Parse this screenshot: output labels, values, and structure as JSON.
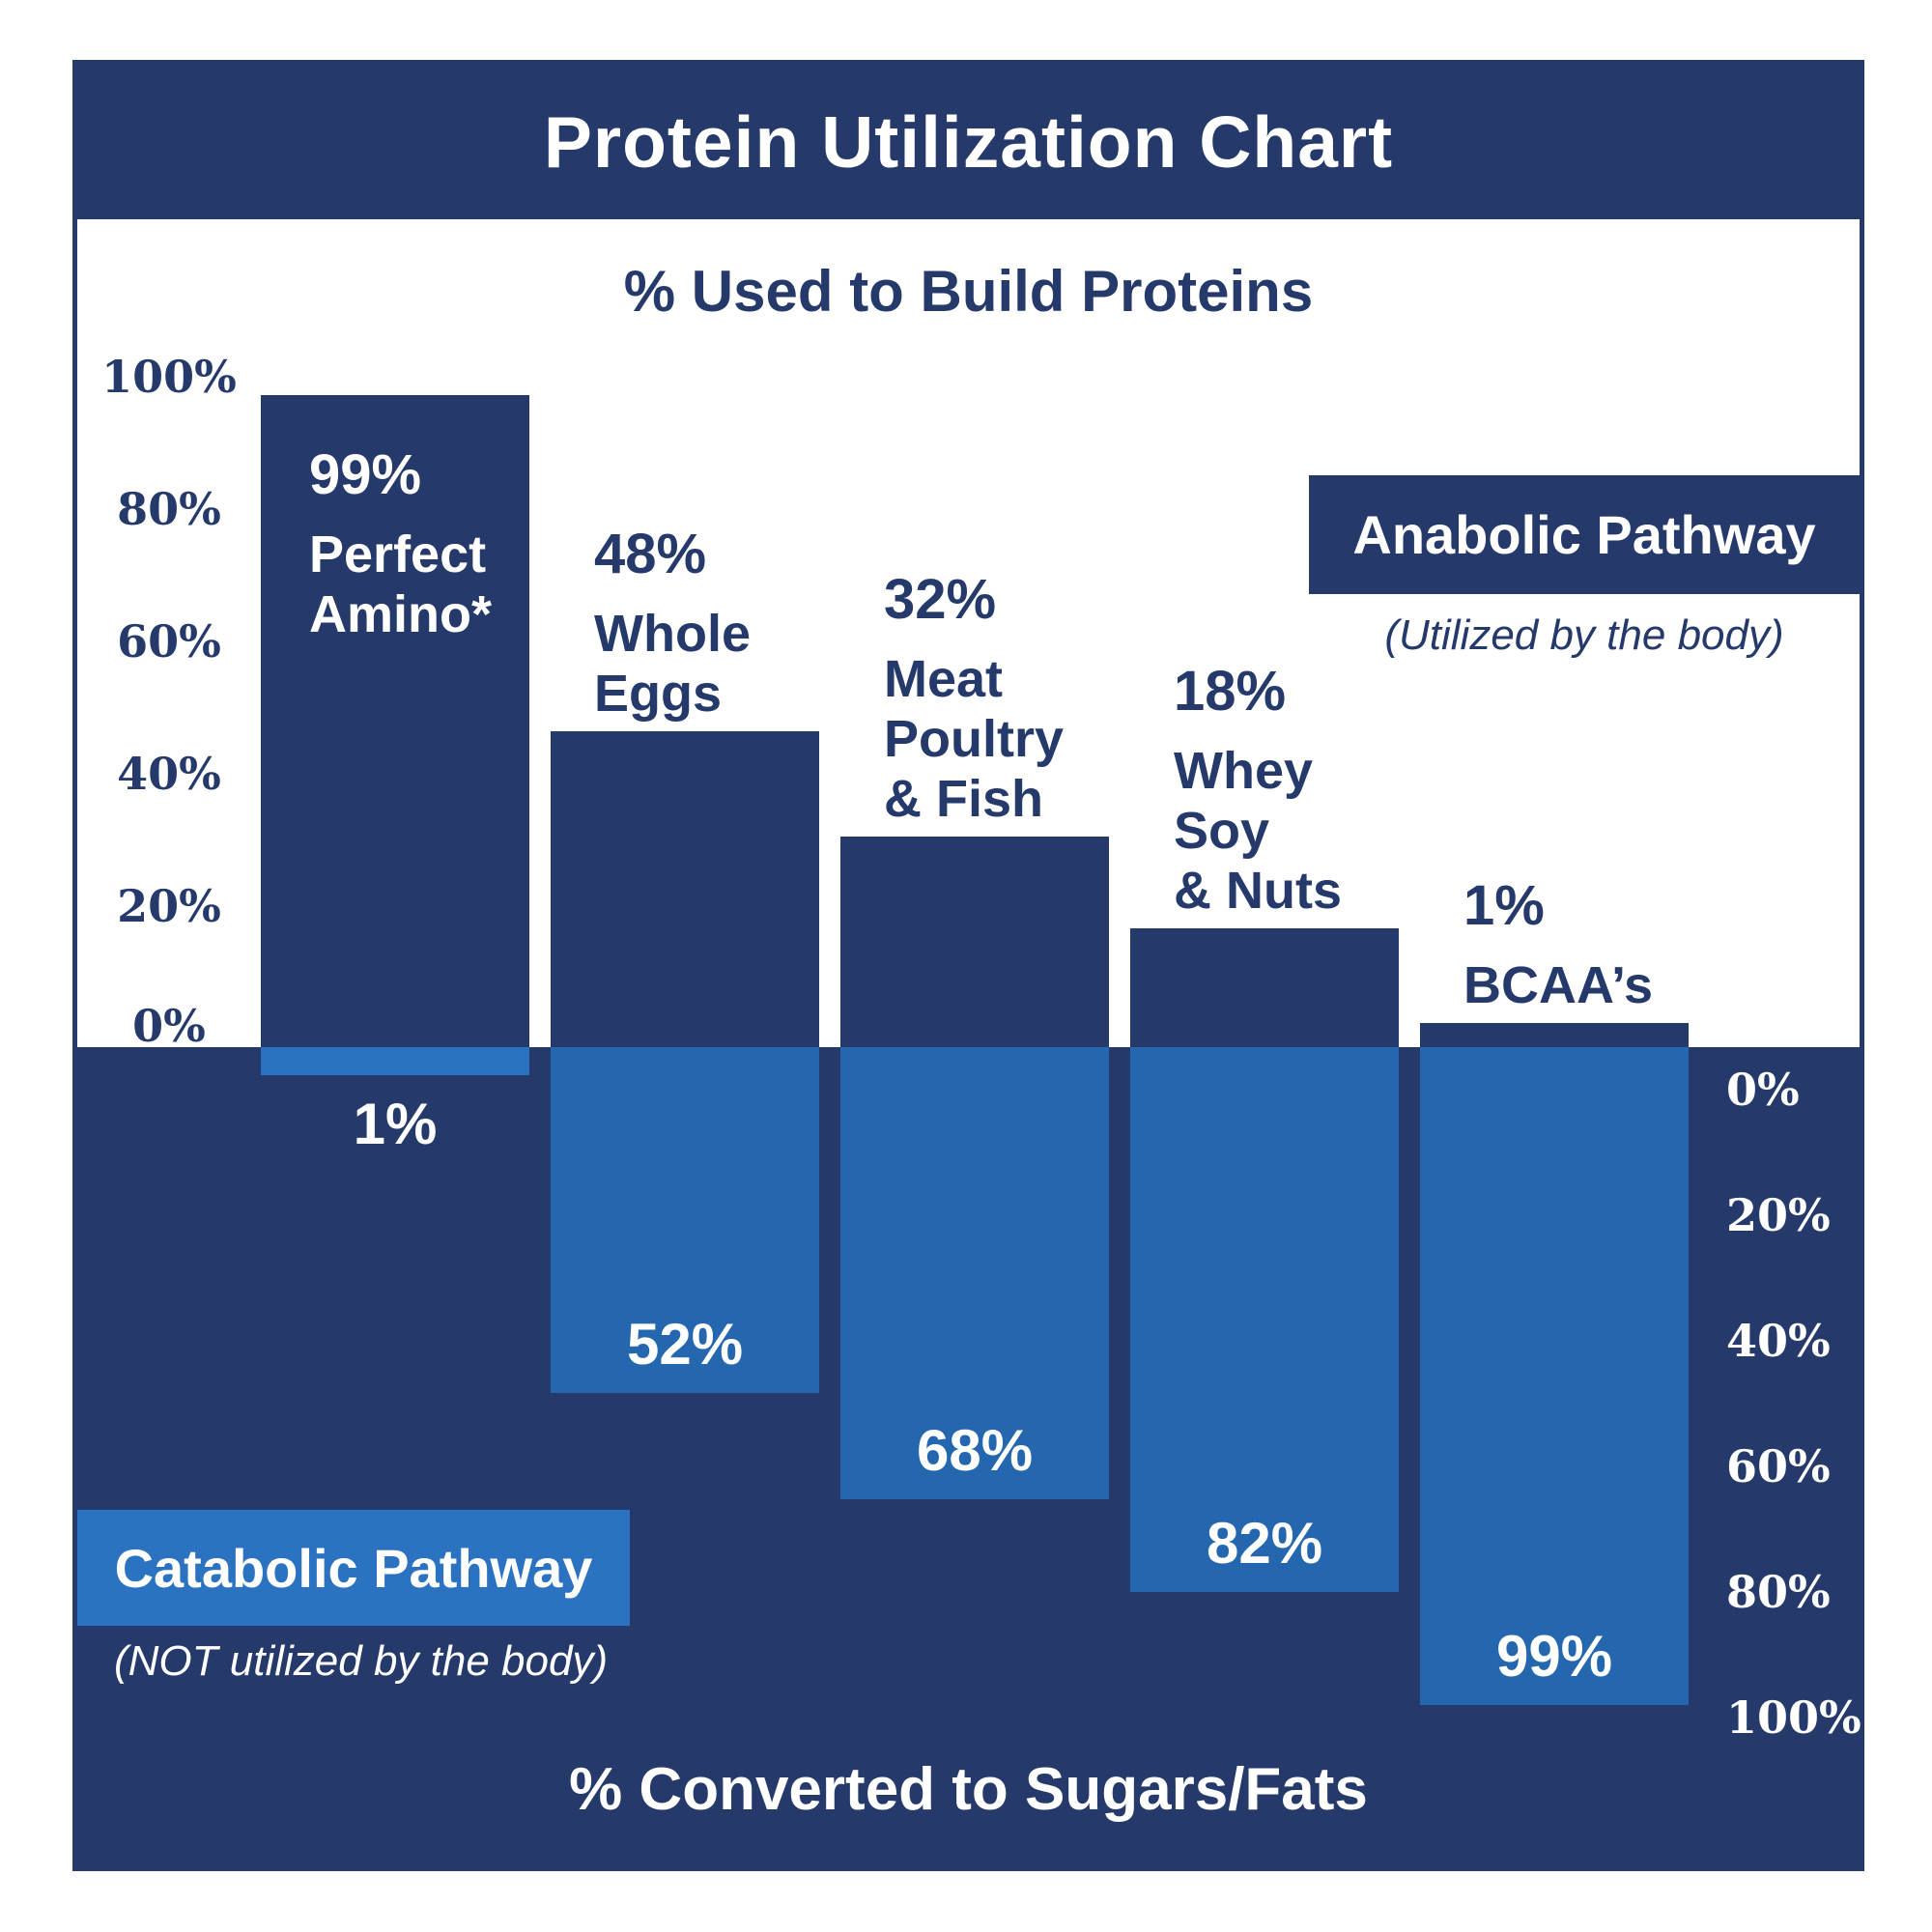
{
  "title": "Protein Utilization Chart",
  "top_axis_title": "% Used to Build Proteins",
  "bottom_axis_title": "% Converted to Sugars/Fats",
  "anabolic": {
    "label": "Anabolic Pathway",
    "sublabel": "(Utilized by the body)"
  },
  "catabolic": {
    "label": "Catabolic Pathway",
    "sublabel": "(NOT utilized by the body)"
  },
  "colors": {
    "navy": "#253A6B",
    "bar_blue": "#2467AE",
    "accent_blue": "#2B72C1",
    "text_white": "#FFFFFF"
  },
  "left_axis": {
    "ticks": [
      "100%",
      "80%",
      "60%",
      "40%",
      "20%",
      "0%"
    ]
  },
  "right_axis": {
    "ticks": [
      "0%",
      "20%",
      "40%",
      "60%",
      "80%",
      "100%"
    ]
  },
  "chart_data": {
    "type": "bar",
    "subtype": "diverging",
    "title": "Protein Utilization Chart",
    "top_label": "% Used to Build Proteins",
    "bottom_label": "% Converted to Sugars/Fats",
    "categories": [
      "Perfect Amino*",
      "Whole Eggs",
      "Meat Poultry & Fish",
      "Whey Soy & Nuts",
      "BCAA's"
    ],
    "series": [
      {
        "name": "Anabolic Pathway (Utilized by the body)",
        "direction": "up",
        "values": [
          99,
          48,
          32,
          18,
          1
        ]
      },
      {
        "name": "Catabolic Pathway (NOT utilized by the body)",
        "direction": "down",
        "values": [
          1,
          52,
          68,
          82,
          99
        ]
      }
    ],
    "axis_range": [
      0,
      100
    ],
    "grid": false,
    "legend_position": "anabolic top-right, catabolic bottom-left",
    "bars": [
      {
        "up_value_label": "99%",
        "name_lines": [
          "Perfect",
          "Amino*"
        ],
        "down_value_label": "1%"
      },
      {
        "up_value_label": "48%",
        "name_lines": [
          "Whole",
          "Eggs"
        ],
        "down_value_label": "52%"
      },
      {
        "up_value_label": "32%",
        "name_lines": [
          "Meat",
          "Poultry",
          "& Fish"
        ],
        "down_value_label": "68%"
      },
      {
        "up_value_label": "18%",
        "name_lines": [
          "Whey",
          "Soy",
          "& Nuts"
        ],
        "down_value_label": "82%"
      },
      {
        "up_value_label": "1%",
        "name_lines": [
          "BCAA’s"
        ],
        "down_value_label": "99%"
      }
    ]
  }
}
